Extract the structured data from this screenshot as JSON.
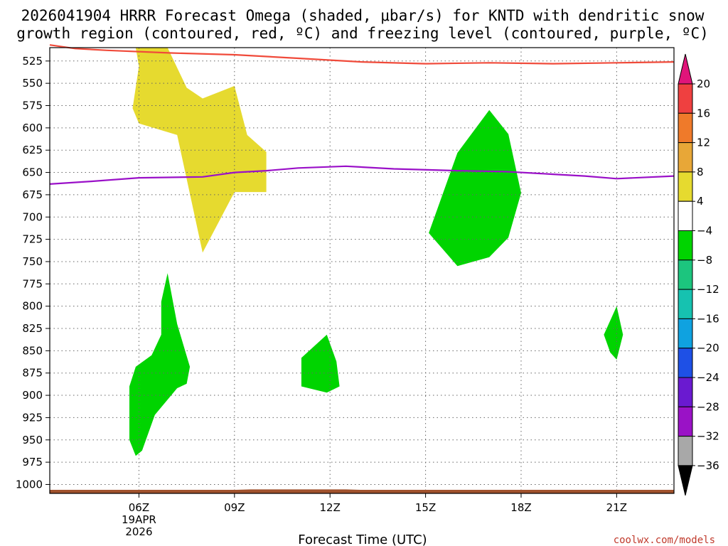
{
  "chart_data": {
    "type": "contour",
    "title_lines": [
      "2026041904 HRRR Forecast Omega (shaded, μbar/s) for KNTD with dendritic snow",
      "growth region (contoured, red, ºC) and freezing level (contoured, purple, ºC)"
    ],
    "xlabel": "Forecast Time (UTC)",
    "credit": "coolwx.com/models",
    "x_range": [
      3.2,
      22.8
    ],
    "y_range": [
      1010,
      510
    ],
    "x_ticks": [
      {
        "value": 6,
        "label": "06Z",
        "sub": [
          "19APR",
          "2026"
        ]
      },
      {
        "value": 9,
        "label": "09Z",
        "sub": []
      },
      {
        "value": 12,
        "label": "12Z",
        "sub": []
      },
      {
        "value": 15,
        "label": "15Z",
        "sub": []
      },
      {
        "value": 18,
        "label": "18Z",
        "sub": []
      },
      {
        "value": 21,
        "label": "21Z",
        "sub": []
      }
    ],
    "y_ticks": [
      "525",
      "550",
      "575",
      "600",
      "625",
      "650",
      "675",
      "700",
      "725",
      "750",
      "775",
      "800",
      "825",
      "850",
      "875",
      "900",
      "925",
      "950",
      "975",
      "1000"
    ],
    "colorbar": {
      "labels": [
        "20",
        "16",
        "12",
        "8",
        "4",
        "−4",
        "−8",
        "−12",
        "−16",
        "−20",
        "−24",
        "−28",
        "−32",
        "−36"
      ],
      "colors": [
        "#ef4040",
        "#ef7a2a",
        "#e8a737",
        "#e6da2f",
        "#ffffff",
        "#00d400",
        "#1cc57e",
        "#16c2b0",
        "#0fa2e0",
        "#1e50e6",
        "#6a1ad0",
        "#9a12c6",
        "#a8a8a8"
      ],
      "top_arrow_color": "#e0157a",
      "bottom_arrow_color": "#000000"
    },
    "shaded_regions": [
      {
        "name": "omega-positive-4-8",
        "color": "#e6da2f",
        "points": [
          [
            5.9,
            510
          ],
          [
            6.9,
            510
          ],
          [
            7.5,
            555
          ],
          [
            8.0,
            567
          ],
          [
            9.0,
            553
          ],
          [
            9.4,
            608
          ],
          [
            10.0,
            627
          ],
          [
            10.0,
            672
          ],
          [
            9.0,
            672
          ],
          [
            8.0,
            740
          ],
          [
            7.2,
            608
          ],
          [
            6.0,
            595
          ],
          [
            5.8,
            578
          ],
          [
            6.0,
            531
          ]
        ]
      },
      {
        "name": "omega-negative-4-8-east",
        "color": "#00d400",
        "points": [
          [
            17.0,
            580
          ],
          [
            17.6,
            607
          ],
          [
            18.0,
            673
          ],
          [
            17.6,
            723
          ],
          [
            17.0,
            745
          ],
          [
            16.0,
            755
          ],
          [
            15.1,
            718
          ],
          [
            16.0,
            628
          ]
        ]
      },
      {
        "name": "omega-negative-4-8-low-left",
        "color": "#00d400",
        "points": [
          [
            6.9,
            763
          ],
          [
            7.2,
            820
          ],
          [
            7.6,
            868
          ],
          [
            7.5,
            887
          ],
          [
            7.2,
            892
          ],
          [
            6.5,
            922
          ],
          [
            6.1,
            962
          ],
          [
            5.9,
            968
          ],
          [
            5.7,
            950
          ],
          [
            5.7,
            890
          ],
          [
            5.9,
            868
          ],
          [
            6.4,
            855
          ],
          [
            6.7,
            832
          ],
          [
            6.7,
            795
          ]
        ]
      },
      {
        "name": "omega-negative-4-8-mid",
        "color": "#00d400",
        "points": [
          [
            11.9,
            832
          ],
          [
            12.2,
            862
          ],
          [
            12.3,
            890
          ],
          [
            11.9,
            897
          ],
          [
            11.1,
            890
          ],
          [
            11.1,
            858
          ]
        ]
      },
      {
        "name": "omega-negative-4-8-right",
        "color": "#00d400",
        "points": [
          [
            21.0,
            800
          ],
          [
            21.2,
            832
          ],
          [
            21.0,
            860
          ],
          [
            20.8,
            852
          ],
          [
            20.6,
            832
          ]
        ]
      }
    ],
    "contours": [
      {
        "name": "dendritic-snow-growth-boundary",
        "color": "#f04a3a",
        "points": [
          [
            3.2,
            507
          ],
          [
            4.0,
            511
          ],
          [
            5.0,
            513
          ],
          [
            7.0,
            516
          ],
          [
            9.0,
            518
          ],
          [
            11.0,
            522
          ],
          [
            13.0,
            526
          ],
          [
            15.0,
            528
          ],
          [
            17.0,
            527
          ],
          [
            19.0,
            528
          ],
          [
            21.0,
            527
          ],
          [
            22.8,
            526
          ]
        ]
      },
      {
        "name": "freezing-level",
        "color": "#9a10c8",
        "points": [
          [
            3.2,
            663
          ],
          [
            4.5,
            660
          ],
          [
            6.0,
            656
          ],
          [
            8.0,
            655
          ],
          [
            9.0,
            650
          ],
          [
            10.0,
            648
          ],
          [
            11.0,
            645
          ],
          [
            12.5,
            643
          ],
          [
            14.0,
            646
          ],
          [
            16.0,
            648
          ],
          [
            17.5,
            649
          ],
          [
            19.0,
            652
          ],
          [
            20.0,
            654
          ],
          [
            21.0,
            657
          ],
          [
            22.8,
            654
          ]
        ]
      }
    ],
    "surface_band": {
      "color": "#a0522d",
      "from": 1010,
      "to": 1006,
      "hump": [
        [
          9.5,
          1005.5
        ],
        [
          12.5,
          1005.5
        ]
      ]
    }
  }
}
